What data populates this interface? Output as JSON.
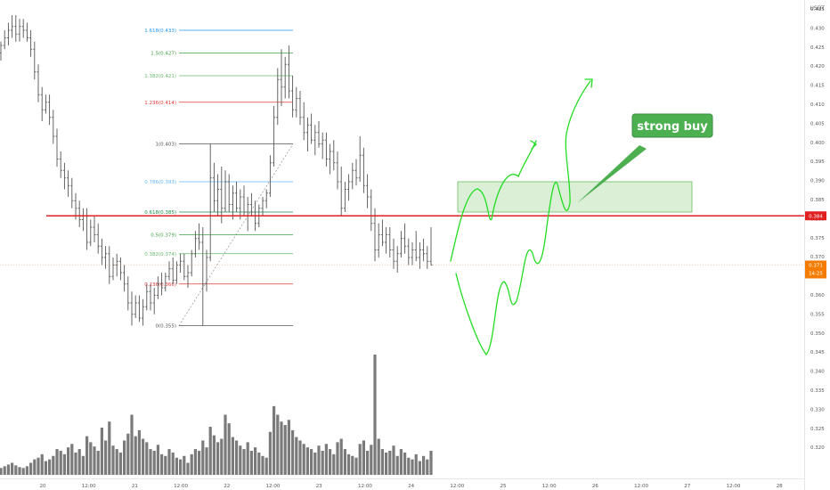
{
  "colors": {
    "candle": "#555555",
    "volume": "#7a7a7a",
    "support": "#e02020",
    "annotation": "#22dd22",
    "buy_zone_fill": "#cdeac8",
    "buy_zone_stroke": "#6bbf5e",
    "fib_1618": "#2196f3",
    "fib_15": "#43a047",
    "fib_1382": "#66bb6a",
    "fib_1236": "#e53935",
    "fib_1": "#555555",
    "fib_0786": "#64b5f6",
    "fib_0618": "#1b8a4a",
    "fib_05": "#43a047",
    "fib_0382": "#66bb6a",
    "fib_0236": "#e53935",
    "fib_0": "#555555",
    "last_price": "#f57c00",
    "callout": "#4caf50"
  },
  "chart_data": {
    "type": "candlestick",
    "currency": "USDT",
    "y_ticks": [
      "0.435",
      "0.430",
      "0.425",
      "0.420",
      "0.415",
      "0.410",
      "0.405",
      "0.400",
      "0.395",
      "0.390",
      "0.385",
      "0.380",
      "0.375",
      "0.370",
      "0.365",
      "0.360",
      "0.355",
      "0.350",
      "0.345",
      "0.340",
      "0.335",
      "0.330",
      "0.325",
      "0.320"
    ],
    "x_ticks": [
      "20",
      "12:00",
      "21",
      "12:00",
      "22",
      "12:00",
      "23",
      "12:00",
      "24",
      "12:00",
      "25",
      "12:00",
      "26",
      "12:00",
      "27",
      "12:00",
      "28"
    ],
    "price_range": [
      0.3495,
      0.4375
    ],
    "fib_levels": [
      {
        "label": "1.618(0.433)",
        "price": 0.433
      },
      {
        "label": "1.5(0.427)",
        "price": 0.427
      },
      {
        "label": "1.382(0.421)",
        "price": 0.421
      },
      {
        "label": "1.236(0.414)",
        "price": 0.414
      },
      {
        "label": "1(0.403)",
        "price": 0.403
      },
      {
        "label": "0.786(0.393)",
        "price": 0.393
      },
      {
        "label": "0.618(0.385)",
        "price": 0.385
      },
      {
        "label": "0.5(0.379)",
        "price": 0.379
      },
      {
        "label": "0.382(0.374)",
        "price": 0.374
      },
      {
        "label": "0.236(0.366)",
        "price": 0.366
      },
      {
        "label": "0(0.355)",
        "price": 0.355
      }
    ],
    "support_level": {
      "price": 0.384,
      "label": "0.384"
    },
    "last_price": {
      "price": 0.371,
      "label": "0.371",
      "countdown": "14:25"
    },
    "buy_zone": {
      "top": 0.393,
      "bottom": 0.385
    },
    "annotation": "strong buy",
    "candles": [
      {
        "o": 0.427,
        "h": 0.43,
        "l": 0.425,
        "c": 0.429,
        "v": 8
      },
      {
        "o": 0.429,
        "h": 0.433,
        "l": 0.428,
        "c": 0.431,
        "v": 10
      },
      {
        "o": 0.431,
        "h": 0.435,
        "l": 0.429,
        "c": 0.433,
        "v": 12
      },
      {
        "o": 0.433,
        "h": 0.437,
        "l": 0.431,
        "c": 0.434,
        "v": 14
      },
      {
        "o": 0.434,
        "h": 0.437,
        "l": 0.43,
        "c": 0.432,
        "v": 11
      },
      {
        "o": 0.432,
        "h": 0.436,
        "l": 0.43,
        "c": 0.434,
        "v": 9
      },
      {
        "o": 0.434,
        "h": 0.436,
        "l": 0.431,
        "c": 0.433,
        "v": 8
      },
      {
        "o": 0.433,
        "h": 0.435,
        "l": 0.43,
        "c": 0.431,
        "v": 10
      },
      {
        "o": 0.431,
        "h": 0.433,
        "l": 0.426,
        "c": 0.428,
        "v": 14
      },
      {
        "o": 0.428,
        "h": 0.43,
        "l": 0.42,
        "c": 0.422,
        "v": 18
      },
      {
        "o": 0.422,
        "h": 0.424,
        "l": 0.414,
        "c": 0.416,
        "v": 20
      },
      {
        "o": 0.416,
        "h": 0.418,
        "l": 0.409,
        "c": 0.412,
        "v": 24
      },
      {
        "o": 0.412,
        "h": 0.416,
        "l": 0.411,
        "c": 0.414,
        "v": 16
      },
      {
        "o": 0.414,
        "h": 0.416,
        "l": 0.408,
        "c": 0.41,
        "v": 18
      },
      {
        "o": 0.41,
        "h": 0.412,
        "l": 0.403,
        "c": 0.405,
        "v": 22
      },
      {
        "o": 0.405,
        "h": 0.407,
        "l": 0.397,
        "c": 0.399,
        "v": 30
      },
      {
        "o": 0.399,
        "h": 0.401,
        "l": 0.394,
        "c": 0.396,
        "v": 28
      },
      {
        "o": 0.396,
        "h": 0.398,
        "l": 0.391,
        "c": 0.394,
        "v": 24
      },
      {
        "o": 0.394,
        "h": 0.396,
        "l": 0.389,
        "c": 0.392,
        "v": 32
      },
      {
        "o": 0.392,
        "h": 0.394,
        "l": 0.386,
        "c": 0.388,
        "v": 36
      },
      {
        "o": 0.388,
        "h": 0.39,
        "l": 0.383,
        "c": 0.386,
        "v": 26
      },
      {
        "o": 0.386,
        "h": 0.388,
        "l": 0.381,
        "c": 0.383,
        "v": 30
      },
      {
        "o": 0.383,
        "h": 0.386,
        "l": 0.38,
        "c": 0.384,
        "v": 22
      },
      {
        "o": 0.384,
        "h": 0.386,
        "l": 0.375,
        "c": 0.377,
        "v": 45
      },
      {
        "o": 0.377,
        "h": 0.383,
        "l": 0.376,
        "c": 0.381,
        "v": 38
      },
      {
        "o": 0.381,
        "h": 0.384,
        "l": 0.377,
        "c": 0.379,
        "v": 33
      },
      {
        "o": 0.379,
        "h": 0.382,
        "l": 0.374,
        "c": 0.376,
        "v": 28
      },
      {
        "o": 0.376,
        "h": 0.378,
        "l": 0.371,
        "c": 0.373,
        "v": 55
      },
      {
        "o": 0.373,
        "h": 0.376,
        "l": 0.37,
        "c": 0.374,
        "v": 40
      },
      {
        "o": 0.374,
        "h": 0.376,
        "l": 0.366,
        "c": 0.368,
        "v": 62
      },
      {
        "o": 0.368,
        "h": 0.373,
        "l": 0.367,
        "c": 0.371,
        "v": 34
      },
      {
        "o": 0.371,
        "h": 0.374,
        "l": 0.368,
        "c": 0.372,
        "v": 30
      },
      {
        "o": 0.372,
        "h": 0.373,
        "l": 0.367,
        "c": 0.369,
        "v": 26
      },
      {
        "o": 0.369,
        "h": 0.371,
        "l": 0.364,
        "c": 0.366,
        "v": 40
      },
      {
        "o": 0.366,
        "h": 0.368,
        "l": 0.359,
        "c": 0.361,
        "v": 48
      },
      {
        "o": 0.361,
        "h": 0.364,
        "l": 0.355,
        "c": 0.358,
        "v": 70
      },
      {
        "o": 0.358,
        "h": 0.363,
        "l": 0.357,
        "c": 0.361,
        "v": 45
      },
      {
        "o": 0.361,
        "h": 0.363,
        "l": 0.356,
        "c": 0.357,
        "v": 52
      },
      {
        "o": 0.357,
        "h": 0.362,
        "l": 0.355,
        "c": 0.36,
        "v": 42
      },
      {
        "o": 0.36,
        "h": 0.366,
        "l": 0.359,
        "c": 0.364,
        "v": 38
      },
      {
        "o": 0.364,
        "h": 0.366,
        "l": 0.359,
        "c": 0.361,
        "v": 30
      },
      {
        "o": 0.361,
        "h": 0.365,
        "l": 0.358,
        "c": 0.363,
        "v": 28
      },
      {
        "o": 0.363,
        "h": 0.368,
        "l": 0.362,
        "c": 0.366,
        "v": 35
      },
      {
        "o": 0.366,
        "h": 0.369,
        "l": 0.363,
        "c": 0.365,
        "v": 24
      },
      {
        "o": 0.365,
        "h": 0.369,
        "l": 0.364,
        "c": 0.368,
        "v": 22
      },
      {
        "o": 0.368,
        "h": 0.372,
        "l": 0.367,
        "c": 0.37,
        "v": 30
      },
      {
        "o": 0.37,
        "h": 0.373,
        "l": 0.366,
        "c": 0.367,
        "v": 26
      },
      {
        "o": 0.367,
        "h": 0.372,
        "l": 0.366,
        "c": 0.371,
        "v": 20
      },
      {
        "o": 0.371,
        "h": 0.374,
        "l": 0.369,
        "c": 0.372,
        "v": 18
      },
      {
        "o": 0.372,
        "h": 0.374,
        "l": 0.367,
        "c": 0.368,
        "v": 22
      },
      {
        "o": 0.368,
        "h": 0.371,
        "l": 0.365,
        "c": 0.369,
        "v": 14
      },
      {
        "o": 0.369,
        "h": 0.375,
        "l": 0.368,
        "c": 0.374,
        "v": 24
      },
      {
        "o": 0.374,
        "h": 0.38,
        "l": 0.373,
        "c": 0.378,
        "v": 30
      },
      {
        "o": 0.378,
        "h": 0.382,
        "l": 0.375,
        "c": 0.377,
        "v": 28
      },
      {
        "o": 0.377,
        "h": 0.381,
        "l": 0.355,
        "c": 0.366,
        "v": 40
      },
      {
        "o": 0.366,
        "h": 0.375,
        "l": 0.364,
        "c": 0.373,
        "v": 32
      },
      {
        "o": 0.373,
        "h": 0.403,
        "l": 0.372,
        "c": 0.394,
        "v": 56
      },
      {
        "o": 0.394,
        "h": 0.398,
        "l": 0.385,
        "c": 0.388,
        "v": 46
      },
      {
        "o": 0.388,
        "h": 0.395,
        "l": 0.384,
        "c": 0.391,
        "v": 38
      },
      {
        "o": 0.391,
        "h": 0.397,
        "l": 0.382,
        "c": 0.386,
        "v": 42
      },
      {
        "o": 0.386,
        "h": 0.396,
        "l": 0.385,
        "c": 0.393,
        "v": 70
      },
      {
        "o": 0.393,
        "h": 0.395,
        "l": 0.385,
        "c": 0.387,
        "v": 60
      },
      {
        "o": 0.387,
        "h": 0.392,
        "l": 0.383,
        "c": 0.39,
        "v": 44
      },
      {
        "o": 0.39,
        "h": 0.393,
        "l": 0.385,
        "c": 0.386,
        "v": 40
      },
      {
        "o": 0.386,
        "h": 0.391,
        "l": 0.383,
        "c": 0.389,
        "v": 34
      },
      {
        "o": 0.389,
        "h": 0.392,
        "l": 0.384,
        "c": 0.385,
        "v": 30
      },
      {
        "o": 0.385,
        "h": 0.389,
        "l": 0.38,
        "c": 0.387,
        "v": 38
      },
      {
        "o": 0.387,
        "h": 0.39,
        "l": 0.384,
        "c": 0.385,
        "v": 28
      },
      {
        "o": 0.385,
        "h": 0.388,
        "l": 0.38,
        "c": 0.382,
        "v": 32
      },
      {
        "o": 0.382,
        "h": 0.387,
        "l": 0.381,
        "c": 0.386,
        "v": 26
      },
      {
        "o": 0.386,
        "h": 0.389,
        "l": 0.384,
        "c": 0.388,
        "v": 22
      },
      {
        "o": 0.388,
        "h": 0.391,
        "l": 0.386,
        "c": 0.39,
        "v": 20
      },
      {
        "o": 0.39,
        "h": 0.4,
        "l": 0.389,
        "c": 0.398,
        "v": 50
      },
      {
        "o": 0.398,
        "h": 0.413,
        "l": 0.397,
        "c": 0.41,
        "v": 80
      },
      {
        "o": 0.41,
        "h": 0.423,
        "l": 0.408,
        "c": 0.42,
        "v": 70
      },
      {
        "o": 0.42,
        "h": 0.428,
        "l": 0.413,
        "c": 0.418,
        "v": 62
      },
      {
        "o": 0.418,
        "h": 0.426,
        "l": 0.415,
        "c": 0.424,
        "v": 58
      },
      {
        "o": 0.424,
        "h": 0.429,
        "l": 0.415,
        "c": 0.417,
        "v": 64
      },
      {
        "o": 0.417,
        "h": 0.421,
        "l": 0.41,
        "c": 0.412,
        "v": 52
      },
      {
        "o": 0.412,
        "h": 0.418,
        "l": 0.41,
        "c": 0.415,
        "v": 44
      },
      {
        "o": 0.415,
        "h": 0.417,
        "l": 0.408,
        "c": 0.41,
        "v": 40
      },
      {
        "o": 0.41,
        "h": 0.414,
        "l": 0.404,
        "c": 0.406,
        "v": 36
      },
      {
        "o": 0.406,
        "h": 0.41,
        "l": 0.401,
        "c": 0.408,
        "v": 32
      },
      {
        "o": 0.408,
        "h": 0.411,
        "l": 0.403,
        "c": 0.404,
        "v": 30
      },
      {
        "o": 0.404,
        "h": 0.408,
        "l": 0.4,
        "c": 0.406,
        "v": 26
      },
      {
        "o": 0.406,
        "h": 0.409,
        "l": 0.402,
        "c": 0.403,
        "v": 34
      },
      {
        "o": 0.403,
        "h": 0.406,
        "l": 0.399,
        "c": 0.404,
        "v": 28
      },
      {
        "o": 0.404,
        "h": 0.406,
        "l": 0.397,
        "c": 0.399,
        "v": 36
      },
      {
        "o": 0.399,
        "h": 0.403,
        "l": 0.395,
        "c": 0.401,
        "v": 30
      },
      {
        "o": 0.401,
        "h": 0.404,
        "l": 0.396,
        "c": 0.398,
        "v": 24
      },
      {
        "o": 0.398,
        "h": 0.401,
        "l": 0.391,
        "c": 0.393,
        "v": 38
      },
      {
        "o": 0.393,
        "h": 0.397,
        "l": 0.384,
        "c": 0.386,
        "v": 42
      },
      {
        "o": 0.386,
        "h": 0.393,
        "l": 0.385,
        "c": 0.391,
        "v": 30
      },
      {
        "o": 0.391,
        "h": 0.395,
        "l": 0.388,
        "c": 0.393,
        "v": 24
      },
      {
        "o": 0.393,
        "h": 0.398,
        "l": 0.391,
        "c": 0.396,
        "v": 22
      },
      {
        "o": 0.396,
        "h": 0.399,
        "l": 0.392,
        "c": 0.394,
        "v": 20
      },
      {
        "o": 0.394,
        "h": 0.405,
        "l": 0.393,
        "c": 0.4,
        "v": 36
      },
      {
        "o": 0.4,
        "h": 0.402,
        "l": 0.39,
        "c": 0.392,
        "v": 40
      },
      {
        "o": 0.392,
        "h": 0.395,
        "l": 0.386,
        "c": 0.389,
        "v": 28
      },
      {
        "o": 0.389,
        "h": 0.391,
        "l": 0.38,
        "c": 0.382,
        "v": 35
      },
      {
        "o": 0.382,
        "h": 0.386,
        "l": 0.372,
        "c": 0.375,
        "v": 140
      },
      {
        "o": 0.375,
        "h": 0.382,
        "l": 0.373,
        "c": 0.379,
        "v": 42
      },
      {
        "o": 0.379,
        "h": 0.383,
        "l": 0.376,
        "c": 0.377,
        "v": 30
      },
      {
        "o": 0.377,
        "h": 0.381,
        "l": 0.374,
        "c": 0.379,
        "v": 26
      },
      {
        "o": 0.379,
        "h": 0.381,
        "l": 0.373,
        "c": 0.375,
        "v": 28
      },
      {
        "o": 0.375,
        "h": 0.378,
        "l": 0.37,
        "c": 0.372,
        "v": 34
      },
      {
        "o": 0.372,
        "h": 0.376,
        "l": 0.369,
        "c": 0.374,
        "v": 22
      },
      {
        "o": 0.374,
        "h": 0.38,
        "l": 0.373,
        "c": 0.378,
        "v": 30
      },
      {
        "o": 0.378,
        "h": 0.382,
        "l": 0.374,
        "c": 0.376,
        "v": 26
      },
      {
        "o": 0.376,
        "h": 0.378,
        "l": 0.371,
        "c": 0.373,
        "v": 20
      },
      {
        "o": 0.373,
        "h": 0.377,
        "l": 0.371,
        "c": 0.375,
        "v": 18
      },
      {
        "o": 0.375,
        "h": 0.38,
        "l": 0.372,
        "c": 0.373,
        "v": 24
      },
      {
        "o": 0.373,
        "h": 0.377,
        "l": 0.37,
        "c": 0.375,
        "v": 16
      },
      {
        "o": 0.375,
        "h": 0.378,
        "l": 0.372,
        "c": 0.374,
        "v": 22
      },
      {
        "o": 0.374,
        "h": 0.376,
        "l": 0.37,
        "c": 0.372,
        "v": 18
      },
      {
        "o": 0.372,
        "h": 0.381,
        "l": 0.371,
        "c": 0.371,
        "v": 28
      }
    ]
  }
}
